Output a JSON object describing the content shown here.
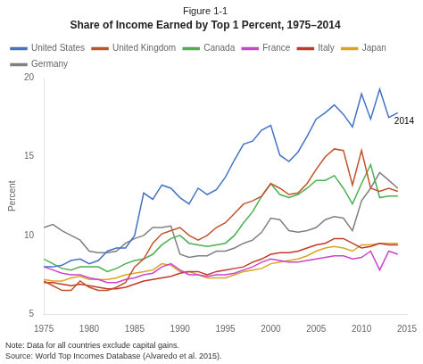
{
  "chart_data": {
    "type": "line",
    "title": "Figure 1-1",
    "subtitle": "Share of Income Earned by Top 1 Percent, 1975–2014",
    "y_label": "Percent",
    "annotation": "2014",
    "notes": [
      "Note: Data for all countries exclude capital gains.",
      "Source: World Top Incomes Database (Alvaredo et al. 2015)."
    ],
    "x": [
      1975,
      1976,
      1977,
      1978,
      1979,
      1980,
      1981,
      1982,
      1983,
      1984,
      1985,
      1986,
      1987,
      1988,
      1989,
      1990,
      1991,
      1992,
      1993,
      1994,
      1995,
      1996,
      1997,
      1998,
      1999,
      2000,
      2001,
      2002,
      2003,
      2004,
      2005,
      2006,
      2007,
      2008,
      2009,
      2010,
      2011,
      2012,
      2013,
      2014
    ],
    "series": [
      {
        "name": "United States",
        "color": "#4472C4",
        "values": [
          8.0,
          8.0,
          8.1,
          8.4,
          8.5,
          8.2,
          8.4,
          9.0,
          9.2,
          9.2,
          10.0,
          12.7,
          12.3,
          13.2,
          13.0,
          12.4,
          12.0,
          13.0,
          12.6,
          12.9,
          13.7,
          14.8,
          15.8,
          16.0,
          16.7,
          17.0,
          15.1,
          14.7,
          15.3,
          16.3,
          17.4,
          17.8,
          18.3,
          17.7,
          16.9,
          19.0,
          17.4,
          19.3,
          17.5,
          17.8
        ]
      },
      {
        "name": "United Kingdom",
        "color": "#C0532A",
        "values": [
          7.1,
          6.8,
          6.5,
          6.5,
          7.1,
          6.7,
          6.5,
          6.5,
          6.7,
          7.0,
          8.0,
          8.5,
          9.5,
          10.1,
          10.3,
          10.5,
          10.0,
          9.7,
          10.0,
          10.5,
          10.8,
          11.4,
          12.0,
          12.2,
          12.5,
          13.3,
          13.0,
          12.6,
          12.7,
          13.3,
          14.2,
          15.0,
          15.5,
          15.4,
          13.2,
          15.4,
          13.0,
          12.8,
          13.0,
          12.8
        ]
      },
      {
        "name": "Canada",
        "color": "#4CAF50",
        "values": [
          8.5,
          8.2,
          7.9,
          7.8,
          8.0,
          8.0,
          8.0,
          7.7,
          7.9,
          8.2,
          8.4,
          8.5,
          8.8,
          9.4,
          9.8,
          10.0,
          9.5,
          9.4,
          9.3,
          9.4,
          9.5,
          10.0,
          10.8,
          11.5,
          12.5,
          13.3,
          12.6,
          12.4,
          12.6,
          13.0,
          13.5,
          13.5,
          13.8,
          13.0,
          12.0,
          13.3,
          14.5,
          12.4,
          12.5,
          12.5
        ]
      },
      {
        "name": "France",
        "color": "#CC44CC",
        "values": [
          8.0,
          7.8,
          7.6,
          7.5,
          7.5,
          7.3,
          7.2,
          7.0,
          7.0,
          7.2,
          7.3,
          7.5,
          7.6,
          8.0,
          8.2,
          7.8,
          7.5,
          7.5,
          7.4,
          7.5,
          7.5,
          7.6,
          7.8,
          8.0,
          8.3,
          8.5,
          8.4,
          8.3,
          8.3,
          8.4,
          8.5,
          8.6,
          8.7,
          8.7,
          8.5,
          8.6,
          9.0,
          7.8,
          9.0,
          8.8
        ]
      },
      {
        "name": "Italy",
        "color": "#C0392B",
        "values": [
          7.0,
          7.0,
          6.9,
          6.8,
          6.9,
          6.8,
          6.7,
          6.6,
          6.6,
          6.7,
          6.9,
          7.1,
          7.2,
          7.3,
          7.4,
          7.6,
          7.7,
          7.7,
          7.5,
          7.7,
          7.8,
          7.9,
          8.0,
          8.3,
          8.5,
          8.8,
          8.9,
          8.9,
          9.0,
          9.2,
          9.4,
          9.5,
          9.8,
          9.8,
          9.5,
          9.2,
          9.3,
          9.5,
          9.4,
          9.4
        ]
      },
      {
        "name": "Japan",
        "color": "#DAA520",
        "values": [
          7.2,
          7.1,
          7.1,
          7.3,
          7.4,
          7.2,
          7.2,
          7.2,
          7.3,
          7.5,
          7.6,
          7.7,
          7.8,
          8.2,
          8.1,
          7.7,
          7.7,
          7.5,
          7.3,
          7.3,
          7.3,
          7.5,
          7.7,
          7.8,
          7.9,
          8.2,
          8.3,
          8.4,
          8.5,
          8.7,
          9.0,
          9.2,
          9.3,
          9.2,
          9.0,
          9.4,
          9.4,
          9.5,
          9.5,
          9.5
        ]
      },
      {
        "name": "Germany",
        "color": "#808080",
        "values": [
          10.5,
          10.7,
          10.3,
          10.0,
          9.7,
          9.0,
          8.9,
          8.9,
          9.0,
          9.5,
          9.8,
          10.0,
          10.5,
          10.5,
          10.6,
          8.8,
          8.6,
          8.7,
          8.7,
          9.0,
          9.0,
          9.2,
          9.5,
          9.7,
          10.2,
          11.1,
          11.0,
          10.3,
          10.2,
          10.3,
          10.5,
          11.0,
          11.2,
          11.1,
          10.3,
          12.2,
          13.0,
          14.0,
          13.5,
          13.0
        ]
      }
    ],
    "xlim": [
      1975,
      2015
    ],
    "xticks": [
      1975,
      1980,
      1985,
      1990,
      1995,
      2000,
      2005,
      2010,
      2015
    ],
    "ylim": [
      5,
      20
    ],
    "yticks": [
      5,
      10,
      15,
      20
    ],
    "grid": false,
    "legend": "upper left"
  }
}
